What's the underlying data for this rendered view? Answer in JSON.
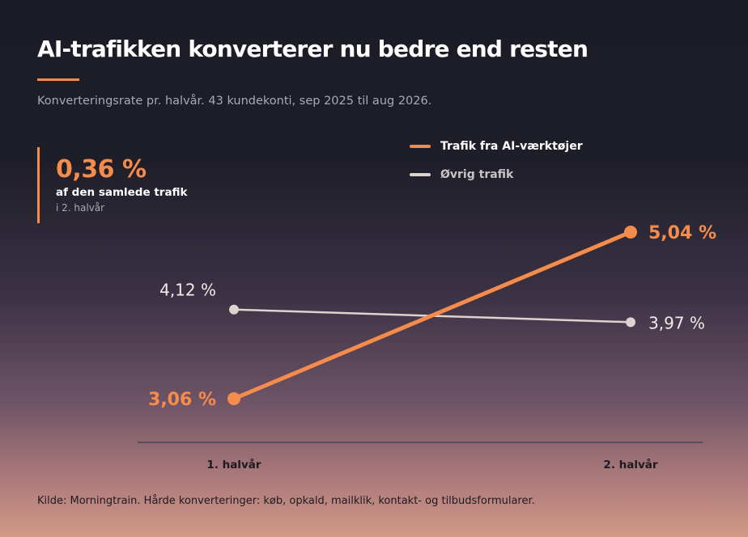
{
  "header": {
    "title": "AI-trafikken konverterer nu bedre end resten",
    "subtitle": "Konverteringsrate pr. halvår. 43 kundekonti, sep 2025 til aug 2026."
  },
  "kpi": {
    "value": "0,36 %",
    "label": "af den samlede trafik",
    "sublabel": "i 2. halvår"
  },
  "colors": {
    "accent": "#f68c4c",
    "other": "#ddd3cf"
  },
  "chart_data": {
    "type": "line",
    "categories": [
      "1. halvår",
      "2. halvår"
    ],
    "series": [
      {
        "name": "Trafik fra AI-værktøjer",
        "values": [
          3.06,
          5.04
        ],
        "labels": [
          "3,06 %",
          "5,04 %"
        ],
        "color": "#f68c4c"
      },
      {
        "name": "Øvrig trafik",
        "values": [
          4.12,
          3.97
        ],
        "labels": [
          "4,12 %",
          "3,97 %"
        ],
        "color": "#ddd3cf"
      }
    ],
    "title": "AI-trafikken konverterer nu bedre end resten",
    "xlabel": "",
    "ylabel": "",
    "grid": false,
    "legend": "top-right"
  },
  "footer": {
    "source": "Kilde: Morningtrain. Hårde konverteringer: køb, opkald, mailklik, kontakt- og tilbudsformularer."
  }
}
